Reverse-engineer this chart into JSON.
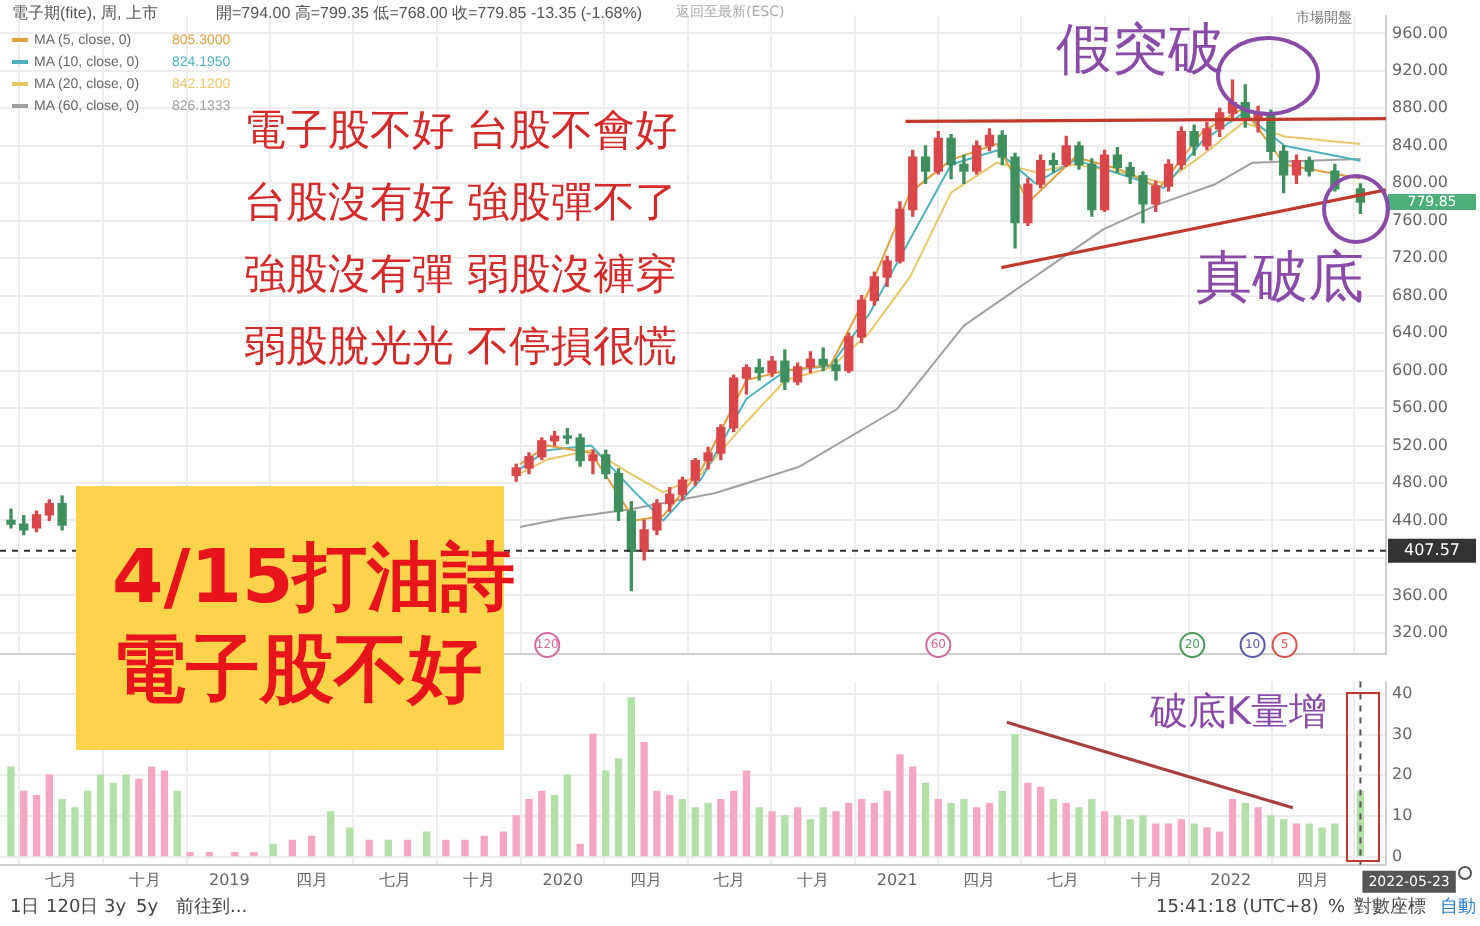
{
  "chart_data": [
    {
      "type": "candlestick",
      "title": "電子期(fite), 周, 上市",
      "subtitle": "開=794.00 高=799.35 低=768.00 收=779.85 -13.35 (-1.68%)",
      "xlim": [
        "2018-04-25",
        "2022-06-20"
      ],
      "xticks": [
        {
          "value": "2018-07-01",
          "label": null
        },
        {
          "value": "2018-10-01",
          "label": null
        },
        {
          "value": "2019-01-01",
          "label": null
        },
        {
          "value": "2019-04-01",
          "label": null
        },
        {
          "value": "2019-07-01",
          "label": null
        },
        {
          "value": "2019-10-01",
          "label": null
        },
        {
          "value": "2020-01-01",
          "label": null
        },
        {
          "value": "2020-04-01",
          "label": null
        },
        {
          "value": "2020-07-01",
          "label": null
        },
        {
          "value": "2020-10-01",
          "label": null
        },
        {
          "value": "2021-01-01",
          "label": null
        },
        {
          "value": "2021-04-01",
          "label": null
        },
        {
          "value": "2021-07-01",
          "label": null
        },
        {
          "value": "2021-10-01",
          "label": null
        },
        {
          "value": "2022-01-01",
          "label": null
        },
        {
          "value": "2022-04-01",
          "label": null
        }
      ],
      "ylim": [
        297,
        979
      ],
      "yticks": [
        {
          "value": 320,
          "label": "320.00"
        },
        {
          "value": 360,
          "label": "360.00"
        },
        {
          "value": 400,
          "label": null
        },
        {
          "value": 440,
          "label": "440.00"
        },
        {
          "value": 480,
          "label": "480.00"
        },
        {
          "value": 520,
          "label": "520.00"
        },
        {
          "value": 560,
          "label": "560.00"
        },
        {
          "value": 600,
          "label": "600.00"
        },
        {
          "value": 640,
          "label": "640.00"
        },
        {
          "value": 680,
          "label": "680.00"
        },
        {
          "value": 720,
          "label": "720.00"
        },
        {
          "value": 760,
          "label": "760.00"
        },
        {
          "value": 800,
          "label": "800.00"
        },
        {
          "value": 840,
          "label": "840.00"
        },
        {
          "value": 880,
          "label": "880.00"
        },
        {
          "value": 920,
          "label": "920.00"
        },
        {
          "value": 960,
          "label": "960.00"
        }
      ],
      "tick_labels": "y",
      "grid": true,
      "legend": "top left",
      "series": [
        {
          "x": [
            "2018-05-07",
            "2018-05-21",
            "2018-06-04",
            "2018-06-18",
            "2018-07-02",
            "2019-11-11",
            "2019-11-25",
            "2019-12-09",
            "2019-12-23",
            "2020-01-06",
            "2020-01-20",
            "2020-02-03",
            "2020-02-17",
            "2020-03-02",
            "2020-03-16",
            "2020-03-30",
            "2020-04-13",
            "2020-04-27",
            "2020-05-11",
            "2020-05-25",
            "2020-06-08",
            "2020-06-22",
            "2020-07-06",
            "2020-07-20",
            "2020-08-03",
            "2020-08-17",
            "2020-08-31",
            "2020-09-14",
            "2020-09-28",
            "2020-10-12",
            "2020-10-26",
            "2020-11-09",
            "2020-11-23",
            "2020-12-07",
            "2020-12-21",
            "2021-01-04",
            "2021-01-18",
            "2021-02-01",
            "2021-02-15",
            "2021-03-01",
            "2021-03-15",
            "2021-03-29",
            "2021-04-12",
            "2021-04-26",
            "2021-05-10",
            "2021-05-24",
            "2021-06-07",
            "2021-06-21",
            "2021-07-05",
            "2021-07-19",
            "2021-08-02",
            "2021-08-16",
            "2021-08-30",
            "2021-09-13",
            "2021-09-27",
            "2021-10-11",
            "2021-10-25",
            "2021-11-08",
            "2021-11-22",
            "2021-12-06",
            "2021-12-20",
            "2022-01-03",
            "2022-01-17",
            "2022-01-31",
            "2022-02-14",
            "2022-02-28",
            "2022-03-14",
            "2022-03-28",
            "2022-04-25",
            "2022-05-23"
          ],
          "ohlc": [
            [
              440,
              452,
              432,
              436
            ],
            [
              436,
              445,
              425,
              430
            ],
            [
              432,
              450,
              428,
              446
            ],
            [
              446,
              462,
              440,
              458
            ],
            [
              458,
              466,
              430,
              435
            ],
            [
              488,
              500,
              482,
              496
            ],
            [
              496,
              512,
              490,
              508
            ],
            [
              508,
              528,
              505,
              525
            ],
            [
              525,
              535,
              520,
              530
            ],
            [
              530,
              538,
              522,
              528
            ],
            [
              528,
              532,
              498,
              504
            ],
            [
              504,
              515,
              490,
              510
            ],
            [
              510,
              515,
              485,
              490
            ],
            [
              490,
              495,
              440,
              450
            ],
            [
              450,
              460,
              365,
              407
            ],
            [
              407,
              440,
              398,
              430
            ],
            [
              430,
              462,
              425,
              458
            ],
            [
              458,
              475,
              450,
              468
            ],
            [
              468,
              486,
              462,
              483
            ],
            [
              483,
              506,
              478,
              504
            ],
            [
              504,
              518,
              495,
              512
            ],
            [
              512,
              542,
              505,
              539
            ],
            [
              539,
              595,
              535,
              592
            ],
            [
              592,
              606,
              575,
              603
            ],
            [
              603,
              612,
              590,
              598
            ],
            [
              598,
              615,
              594,
              610
            ],
            [
              610,
              622,
              580,
              588
            ],
            [
              588,
              608,
              585,
              604
            ],
            [
              604,
              620,
              598,
              612
            ],
            [
              612,
              624,
              600,
              606
            ],
            [
              606,
              612,
              590,
              600
            ],
            [
              600,
              640,
              598,
              636
            ],
            [
              636,
              680,
              630,
              675
            ],
            [
              675,
              705,
              670,
              700
            ],
            [
              700,
              722,
              690,
              717
            ],
            [
              717,
              780,
              715,
              772
            ],
            [
              772,
              835,
              765,
              828
            ],
            [
              828,
              840,
              800,
              813
            ],
            [
              813,
              855,
              810,
              848
            ],
            [
              848,
              852,
              805,
              820
            ],
            [
              820,
              830,
              800,
              813
            ],
            [
              813,
              845,
              810,
              840
            ],
            [
              840,
              858,
              835,
              851
            ],
            [
              851,
              856,
              820,
              828
            ],
            [
              828,
              832,
              731,
              758
            ],
            [
              758,
              805,
              755,
              799
            ],
            [
              799,
              830,
              795,
              824
            ],
            [
              824,
              832,
              812,
              820
            ],
            [
              820,
              850,
              818,
              840
            ],
            [
              840,
              844,
              815,
              820
            ],
            [
              820,
              826,
              765,
              772
            ],
            [
              772,
              835,
              770,
              830
            ],
            [
              830,
              838,
              812,
              817
            ],
            [
              817,
              822,
              800,
              808
            ],
            [
              808,
              812,
              758,
              778
            ],
            [
              778,
              802,
              770,
              797
            ],
            [
              797,
              825,
              792,
              820
            ],
            [
              820,
              860,
              815,
              855
            ],
            [
              855,
              862,
              830,
              840
            ],
            [
              840,
              865,
              836,
              858
            ],
            [
              858,
              880,
              850,
              875
            ],
            [
              875,
              910,
              868,
              886
            ],
            [
              886,
              905,
              860,
              869
            ],
            [
              869,
              882,
              855,
              875
            ],
            [
              875,
              878,
              825,
              834
            ],
            [
              834,
              840,
              790,
              809
            ],
            [
              809,
              830,
              800,
              824
            ],
            [
              824,
              828,
              808,
              813
            ],
            [
              813,
              820,
              792,
              794
            ],
            [
              794,
              799.35,
              768,
              779.85
            ]
          ],
          "colors": [
            "#3f8f5f",
            "#3f8f5f",
            "#d9474b",
            "#d9474b",
            "#3f8f5f",
            "#d9474b",
            "#d9474b",
            "#d9474b",
            "#d9474b",
            "#3f8f5f",
            "#3f8f5f",
            "#d9474b",
            "#3f8f5f",
            "#3f8f5f",
            "#3f8f5f",
            "#d9474b",
            "#d9474b",
            "#d9474b",
            "#d9474b",
            "#d9474b",
            "#d9474b",
            "#d9474b",
            "#d9474b",
            "#d9474b",
            "#3f8f5f",
            "#d9474b",
            "#3f8f5f",
            "#d9474b",
            "#d9474b",
            "#3f8f5f",
            "#3f8f5f",
            "#d9474b",
            "#d9474b",
            "#d9474b",
            "#d9474b",
            "#d9474b",
            "#d9474b",
            "#3f8f5f",
            "#d9474b",
            "#3f8f5f",
            "#3f8f5f",
            "#d9474b",
            "#d9474b",
            "#3f8f5f",
            "#3f8f5f",
            "#d9474b",
            "#d9474b",
            "#3f8f5f",
            "#d9474b",
            "#3f8f5f",
            "#3f8f5f",
            "#d9474b",
            "#3f8f5f",
            "#3f8f5f",
            "#3f8f5f",
            "#d9474b",
            "#d9474b",
            "#d9474b",
            "#3f8f5f",
            "#d9474b",
            "#d9474b",
            "#d9474b",
            "#3f8f5f",
            "#d9474b",
            "#3f8f5f",
            "#3f8f5f",
            "#d9474b",
            "#3f8f5f",
            "#3f8f5f",
            "#3f8f5f"
          ]
        },
        {
          "type": "line",
          "name": "MA (5, close, 0)",
          "color": "#e0a040",
          "x": [
            "2019-11-15",
            "2019-12-15",
            "2020-02-01",
            "2020-03-20",
            "2020-04-20",
            "2020-06-01",
            "2020-07-20",
            "2020-09-01",
            "2020-10-20",
            "2020-12-01",
            "2021-01-15",
            "2021-03-01",
            "2021-04-20",
            "2021-05-25",
            "2021-07-15",
            "2021-09-01",
            "2021-10-15",
            "2021-12-01",
            "2022-01-15",
            "2022-03-01",
            "2022-05-23"
          ],
          "values": [
            500,
            520,
            512,
            440,
            445,
            495,
            590,
            600,
            606,
            685,
            790,
            825,
            842,
            780,
            828,
            815,
            795,
            855,
            880,
            820,
            805
          ]
        },
        {
          "type": "line",
          "name": "MA (10, close, 0)",
          "color": "#4fb3bf",
          "x": [
            "2019-11-15",
            "2019-12-15",
            "2020-02-01",
            "2020-03-20",
            "2020-04-20",
            "2020-06-01",
            "2020-07-20",
            "2020-09-01",
            "2020-10-20",
            "2020-12-01",
            "2021-01-15",
            "2021-03-01",
            "2021-04-20",
            "2021-06-01",
            "2021-07-15",
            "2021-09-01",
            "2021-10-20",
            "2021-12-01",
            "2022-01-15",
            "2022-03-01",
            "2022-05-23"
          ],
          "values": [
            495,
            515,
            520,
            470,
            440,
            485,
            570,
            600,
            605,
            660,
            740,
            820,
            835,
            800,
            825,
            810,
            795,
            845,
            875,
            840,
            824
          ]
        },
        {
          "type": "line",
          "name": "MA (20, close, 0)",
          "color": "#e8c86a",
          "x": [
            "2019-11-15",
            "2019-12-15",
            "2020-02-01",
            "2020-03-15",
            "2020-04-20",
            "2020-06-01",
            "2020-07-15",
            "2020-09-01",
            "2020-10-20",
            "2020-12-01",
            "2021-01-15",
            "2021-03-01",
            "2021-04-20",
            "2021-06-01",
            "2021-07-15",
            "2021-09-01",
            "2021-10-20",
            "2021-12-01",
            "2022-01-15",
            "2022-03-01",
            "2022-05-23"
          ],
          "values": [
            490,
            505,
            515,
            490,
            470,
            490,
            540,
            590,
            603,
            640,
            700,
            790,
            822,
            812,
            820,
            812,
            800,
            830,
            865,
            850,
            842
          ]
        },
        {
          "type": "line",
          "name": "MA (60, close, 0)",
          "color": "#a0a0a0",
          "x": [
            "2019-11-15",
            "2020-01-01",
            "2020-03-15",
            "2020-06-15",
            "2020-09-15",
            "2021-01-01",
            "2021-03-15",
            "2021-06-15",
            "2021-08-15",
            "2021-10-15",
            "2021-12-15",
            "2022-01-25",
            "2022-05-23"
          ],
          "values": [
            433,
            442,
            452,
            469,
            497,
            559,
            648,
            710,
            751,
            778,
            799,
            822,
            826
          ]
        },
        {
          "type": "line",
          "color": "#c0392b",
          "x": [
            "2021-01-10",
            "2022-06-20"
          ],
          "values": [
            866,
            869
          ]
        },
        {
          "type": "line",
          "color": "#c0392b",
          "x": [
            "2021-04-25",
            "2022-06-20"
          ],
          "values": [
            710,
            793
          ]
        }
      ],
      "ref_lines": [
        {
          "axis": "y",
          "value": 407.57,
          "label": "407.57",
          "color": "#333333",
          "line_style": "dashed"
        }
      ],
      "annotations": [
        "電子股不好  台股不會好",
        "台股沒有好  強股彈不了",
        "強股沒有彈  弱股沒褲穿",
        "弱股脫光光  不停損很慌",
        "4/15打油詩",
        "電子股不好",
        "假突破",
        "真破底",
        "返回至最新(ESC)",
        "市場開盤",
        "779.85",
        "805.3000",
        "824.1950",
        "842.1200",
        "826.1333",
        {
          "text": "120",
          "x": "2019-12-15",
          "y": 307
        },
        {
          "text": "60",
          "x": "2021-02-15",
          "y": 307
        },
        {
          "text": "20",
          "x": "2021-11-20",
          "y": 307
        },
        {
          "text": "10",
          "x": "2022-01-25",
          "y": 307
        },
        {
          "text": "5",
          "x": "2022-03-01",
          "y": 307
        }
      ]
    },
    {
      "type": "bar",
      "xlim": [
        "2018-04-25",
        "2022-06-20"
      ],
      "xticks": [
        {
          "value": "2018-07-01",
          "label": "七月"
        },
        {
          "value": "2018-10-01",
          "label": "十月"
        },
        {
          "value": "2019-01-01",
          "label": "2019"
        },
        {
          "value": "2019-04-01",
          "label": "四月"
        },
        {
          "value": "2019-07-01",
          "label": "七月"
        },
        {
          "value": "2019-10-01",
          "label": "十月"
        },
        {
          "value": "2020-01-01",
          "label": "2020"
        },
        {
          "value": "2020-04-01",
          "label": "四月"
        },
        {
          "value": "2020-07-01",
          "label": "七月"
        },
        {
          "value": "2020-10-01",
          "label": "十月"
        },
        {
          "value": "2021-01-01",
          "label": "2021"
        },
        {
          "value": "2021-04-01",
          "label": "四月"
        },
        {
          "value": "2021-07-01",
          "label": "七月"
        },
        {
          "value": "2021-10-01",
          "label": "十月"
        },
        {
          "value": "2022-01-01",
          "label": "2022"
        },
        {
          "value": "2022-04-01",
          "label": "四月"
        }
      ],
      "ylim": [
        -2,
        43
      ],
      "yticks": [
        0,
        10,
        20,
        30,
        40
      ],
      "grid": true,
      "series": [
        {
          "x": [
            "2018-05-07",
            "2018-05-21",
            "2018-06-04",
            "2018-06-18",
            "2018-07-02",
            "2018-07-16",
            "2018-07-30",
            "2018-08-13",
            "2018-08-27",
            "2018-09-10",
            "2018-09-24",
            "2018-10-08",
            "2018-10-22",
            "2018-11-05",
            "2018-11-19",
            "2018-12-10",
            "2019-01-07",
            "2019-01-28",
            "2019-02-18",
            "2019-03-11",
            "2019-04-01",
            "2019-04-22",
            "2019-05-13",
            "2019-06-03",
            "2019-06-24",
            "2019-07-15",
            "2019-08-05",
            "2019-08-26",
            "2019-09-16",
            "2019-10-07",
            "2019-10-28",
            "2019-11-11",
            "2019-11-25",
            "2019-12-09",
            "2019-12-23",
            "2020-01-06",
            "2020-01-20",
            "2020-02-03",
            "2020-02-17",
            "2020-03-02",
            "2020-03-16",
            "2020-03-30",
            "2020-04-13",
            "2020-04-27",
            "2020-05-11",
            "2020-05-25",
            "2020-06-08",
            "2020-06-22",
            "2020-07-06",
            "2020-07-20",
            "2020-08-03",
            "2020-08-17",
            "2020-08-31",
            "2020-09-14",
            "2020-09-28",
            "2020-10-12",
            "2020-10-26",
            "2020-11-09",
            "2020-11-23",
            "2020-12-07",
            "2020-12-21",
            "2021-01-04",
            "2021-01-18",
            "2021-02-01",
            "2021-02-15",
            "2021-03-01",
            "2021-03-15",
            "2021-03-29",
            "2021-04-12",
            "2021-04-26",
            "2021-05-10",
            "2021-05-24",
            "2021-06-07",
            "2021-06-21",
            "2021-07-05",
            "2021-07-19",
            "2021-08-02",
            "2021-08-16",
            "2021-08-30",
            "2021-09-13",
            "2021-09-27",
            "2021-10-11",
            "2021-10-25",
            "2021-11-08",
            "2021-11-22",
            "2021-12-06",
            "2021-12-20",
            "2022-01-03",
            "2022-01-17",
            "2022-01-31",
            "2022-02-14",
            "2022-02-28",
            "2022-03-14",
            "2022-03-28",
            "2022-04-11",
            "2022-04-25",
            "2022-05-23"
          ],
          "values": [
            22,
            16,
            15,
            20,
            14,
            12,
            16,
            20,
            18,
            20,
            19,
            22,
            21,
            16,
            1,
            1,
            1,
            1,
            3,
            4,
            5,
            11,
            7,
            4,
            4,
            4,
            6,
            4,
            4,
            5,
            6,
            10,
            14,
            16,
            15,
            20,
            3,
            30,
            21,
            24,
            39,
            28,
            16,
            15,
            14,
            12,
            13,
            14,
            16,
            21,
            12,
            11,
            10,
            12,
            9,
            12,
            11,
            13,
            14,
            13,
            16,
            25,
            22,
            18,
            14,
            13,
            14,
            12,
            13,
            16,
            30,
            18,
            17,
            14,
            13,
            12,
            14,
            11,
            10,
            9,
            10,
            8,
            8,
            9,
            8,
            7,
            6,
            14,
            13,
            12,
            10,
            9,
            8,
            8,
            7,
            8,
            16
          ],
          "colors": [
            "#b3e0a8",
            "#f4a6c4",
            "#f4a6c4",
            "#f4a6c4",
            "#b3e0a8",
            "#b3e0a8",
            "#b3e0a8",
            "#b3e0a8",
            "#b3e0a8",
            "#b3e0a8",
            "#f4a6c4",
            "#f4a6c4",
            "#f4a6c4",
            "#b3e0a8",
            "#f4a6c4",
            "#f4a6c4",
            "#f4a6c4",
            "#f4a6c4",
            "#b3e0a8",
            "#f4a6c4",
            "#f4a6c4",
            "#b3e0a8",
            "#b3e0a8",
            "#f4a6c4",
            "#b3e0a8",
            "#f4a6c4",
            "#b3e0a8",
            "#f4a6c4",
            "#f4a6c4",
            "#f4a6c4",
            "#f4a6c4",
            "#f4a6c4",
            "#f4a6c4",
            "#f4a6c4",
            "#b3e0a8",
            "#b3e0a8",
            "#f4a6c4",
            "#f4a6c4",
            "#b3e0a8",
            "#b3e0a8",
            "#b3e0a8",
            "#f4a6c4",
            "#f4a6c4",
            "#f4a6c4",
            "#b3e0a8",
            "#b3e0a8",
            "#b3e0a8",
            "#f4a6c4",
            "#f4a6c4",
            "#f4a6c4",
            "#b3e0a8",
            "#f4a6c4",
            "#b3e0a8",
            "#f4a6c4",
            "#b3e0a8",
            "#b3e0a8",
            "#f4a6c4",
            "#f4a6c4",
            "#f4a6c4",
            "#f4a6c4",
            "#f4a6c4",
            "#f4a6c4",
            "#f4a6c4",
            "#b3e0a8",
            "#f4a6c4",
            "#b3e0a8",
            "#b3e0a8",
            "#f4a6c4",
            "#f4a6c4",
            "#b3e0a8",
            "#b3e0a8",
            "#f4a6c4",
            "#f4a6c4",
            "#b3e0a8",
            "#f4a6c4",
            "#b3e0a8",
            "#b3e0a8",
            "#f4a6c4",
            "#b3e0a8",
            "#b3e0a8",
            "#b3e0a8",
            "#f4a6c4",
            "#f4a6c4",
            "#f4a6c4",
            "#b3e0a8",
            "#f4a6c4",
            "#f4a6c4",
            "#f4a6c4",
            "#b3e0a8",
            "#f4a6c4",
            "#b3e0a8",
            "#b3e0a8",
            "#f4a6c4",
            "#b3e0a8",
            "#b3e0a8",
            "#b3e0a8",
            "#b3e0a8"
          ]
        },
        {
          "type": "line",
          "color": "#a84040",
          "x": [
            "2021-05-01",
            "2022-03-10"
          ],
          "values": [
            33,
            12
          ]
        }
      ],
      "ref_lines": [
        {
          "axis": "x",
          "value": "2022-05-23",
          "label": "2022-05-23",
          "color": "#555555",
          "line_style": "dashed"
        }
      ],
      "annotations": [
        "破底K量增",
        "1日",
        "120日",
        "3y",
        "5y",
        "前往到...",
        "15:41:18 (UTC+8)",
        "%",
        "對數座標",
        "自動"
      ]
    }
  ]
}
